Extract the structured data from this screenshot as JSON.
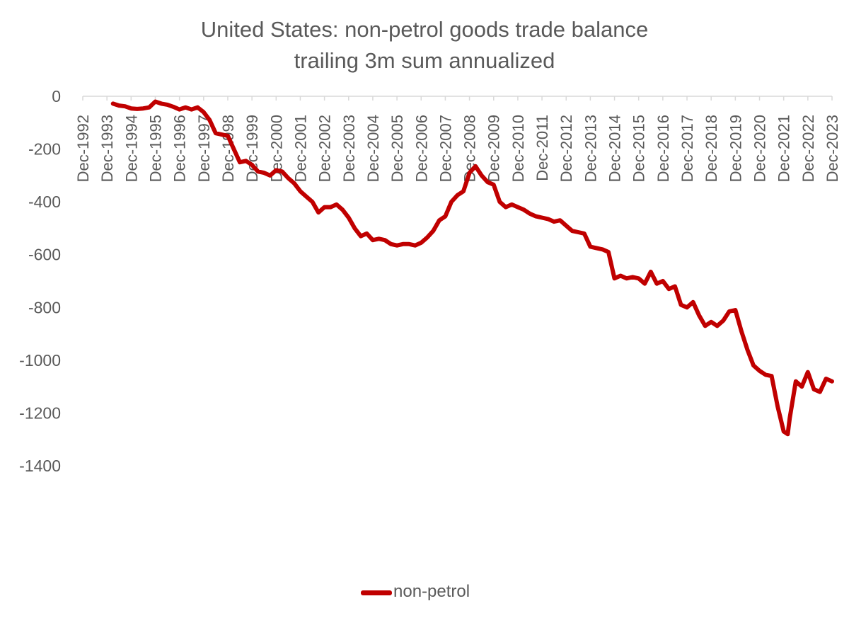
{
  "chart_data": {
    "type": "line",
    "title": "United States: non-petrol goods trade balance",
    "subtitle": "trailing 3m sum annualized",
    "xlabel": "",
    "ylabel": "",
    "ylim": [
      -1400,
      0
    ],
    "y_ticks": [
      0,
      -200,
      -400,
      -600,
      -800,
      -1000,
      -1200,
      -1400
    ],
    "x_tick_labels": [
      "Dec-1992",
      "Dec-1993",
      "Dec-1994",
      "Dec-1995",
      "Dec-1996",
      "Dec-1997",
      "Dec-1998",
      "Dec-1999",
      "Dec-2000",
      "Dec-2001",
      "Dec-2002",
      "Dec-2003",
      "Dec-2004",
      "Dec-2005",
      "Dec-2006",
      "Dec-2007",
      "Dec-2008",
      "Dec-2009",
      "Dec-2010",
      "Dec-2011",
      "Dec-2012",
      "Dec-2013",
      "Dec-2014",
      "Dec-2015",
      "Dec-2016",
      "Dec-2017",
      "Dec-2018",
      "Dec-2019",
      "Dec-2020",
      "Dec-2021",
      "Dec-2022",
      "Dec-2023"
    ],
    "legend_position": "bottom",
    "grid": false,
    "series": [
      {
        "name": "non-petrol",
        "color": "#c00000",
        "points": [
          [
            "1994-03",
            -28
          ],
          [
            "1994-06",
            -35
          ],
          [
            "1994-09",
            -38
          ],
          [
            "1994-12",
            -46
          ],
          [
            "1995-03",
            -48
          ],
          [
            "1995-06",
            -46
          ],
          [
            "1995-09",
            -42
          ],
          [
            "1995-12",
            -20
          ],
          [
            "1996-03",
            -28
          ],
          [
            "1996-06",
            -32
          ],
          [
            "1996-09",
            -40
          ],
          [
            "1996-12",
            -50
          ],
          [
            "1997-03",
            -42
          ],
          [
            "1997-06",
            -50
          ],
          [
            "1997-09",
            -42
          ],
          [
            "1997-12",
            -60
          ],
          [
            "1998-03",
            -90
          ],
          [
            "1998-06",
            -140
          ],
          [
            "1998-09",
            -145
          ],
          [
            "1998-12",
            -150
          ],
          [
            "1999-03",
            -200
          ],
          [
            "1999-06",
            -250
          ],
          [
            "1999-09",
            -245
          ],
          [
            "1999-12",
            -260
          ],
          [
            "2000-03",
            -285
          ],
          [
            "2000-06",
            -290
          ],
          [
            "2000-09",
            -300
          ],
          [
            "2000-12",
            -280
          ],
          [
            "2001-03",
            -285
          ],
          [
            "2001-06",
            -310
          ],
          [
            "2001-09",
            -330
          ],
          [
            "2001-12",
            -360
          ],
          [
            "2002-03",
            -380
          ],
          [
            "2002-06",
            -400
          ],
          [
            "2002-09",
            -440
          ],
          [
            "2002-12",
            -420
          ],
          [
            "2003-03",
            -420
          ],
          [
            "2003-06",
            -410
          ],
          [
            "2003-09",
            -430
          ],
          [
            "2003-12",
            -460
          ],
          [
            "2004-03",
            -500
          ],
          [
            "2004-06",
            -530
          ],
          [
            "2004-09",
            -520
          ],
          [
            "2004-12",
            -545
          ],
          [
            "2005-03",
            -540
          ],
          [
            "2005-06",
            -545
          ],
          [
            "2005-09",
            -560
          ],
          [
            "2005-12",
            -565
          ],
          [
            "2006-03",
            -560
          ],
          [
            "2006-06",
            -560
          ],
          [
            "2006-09",
            -565
          ],
          [
            "2006-12",
            -555
          ],
          [
            "2007-03",
            -535
          ],
          [
            "2007-06",
            -510
          ],
          [
            "2007-09",
            -470
          ],
          [
            "2007-12",
            -455
          ],
          [
            "2008-03",
            -400
          ],
          [
            "2008-06",
            -375
          ],
          [
            "2008-09",
            -360
          ],
          [
            "2008-12",
            -290
          ],
          [
            "2009-03",
            -265
          ],
          [
            "2009-06",
            -300
          ],
          [
            "2009-09",
            -325
          ],
          [
            "2009-12",
            -335
          ],
          [
            "2010-03",
            -400
          ],
          [
            "2010-06",
            -420
          ],
          [
            "2010-09",
            -410
          ],
          [
            "2010-12",
            -420
          ],
          [
            "2011-03",
            -430
          ],
          [
            "2011-06",
            -445
          ],
          [
            "2011-09",
            -455
          ],
          [
            "2011-12",
            -460
          ],
          [
            "2012-03",
            -465
          ],
          [
            "2012-06",
            -475
          ],
          [
            "2012-09",
            -470
          ],
          [
            "2012-12",
            -490
          ],
          [
            "2013-03",
            -510
          ],
          [
            "2013-06",
            -515
          ],
          [
            "2013-09",
            -520
          ],
          [
            "2013-12",
            -570
          ],
          [
            "2014-03",
            -575
          ],
          [
            "2014-06",
            -580
          ],
          [
            "2014-09",
            -590
          ],
          [
            "2014-12",
            -690
          ],
          [
            "2015-03",
            -680
          ],
          [
            "2015-06",
            -690
          ],
          [
            "2015-09",
            -685
          ],
          [
            "2015-12",
            -690
          ],
          [
            "2016-03",
            -710
          ],
          [
            "2016-06",
            -665
          ],
          [
            "2016-09",
            -710
          ],
          [
            "2016-12",
            -700
          ],
          [
            "2017-03",
            -730
          ],
          [
            "2017-06",
            -720
          ],
          [
            "2017-09",
            -790
          ],
          [
            "2017-12",
            -800
          ],
          [
            "2018-03",
            -780
          ],
          [
            "2018-06",
            -830
          ],
          [
            "2018-09",
            -870
          ],
          [
            "2018-12",
            -855
          ],
          [
            "2019-03",
            -870
          ],
          [
            "2019-06",
            -850
          ],
          [
            "2019-09",
            -815
          ],
          [
            "2019-12",
            -810
          ],
          [
            "2020-03",
            -890
          ],
          [
            "2020-06",
            -960
          ],
          [
            "2020-09",
            -1020
          ],
          [
            "2020-12",
            -1040
          ],
          [
            "2021-03",
            -1055
          ],
          [
            "2021-06",
            -1060
          ],
          [
            "2021-09",
            -1175
          ],
          [
            "2021-12",
            -1270
          ],
          [
            "2022-02",
            -1280
          ],
          [
            "2022-03",
            -1220
          ],
          [
            "2022-06",
            -1080
          ],
          [
            "2022-09",
            -1100
          ],
          [
            "2022-12",
            -1045
          ],
          [
            "2023-03",
            -1110
          ],
          [
            "2023-06",
            -1120
          ],
          [
            "2023-09",
            -1070
          ],
          [
            "2023-12",
            -1080
          ]
        ]
      }
    ]
  }
}
